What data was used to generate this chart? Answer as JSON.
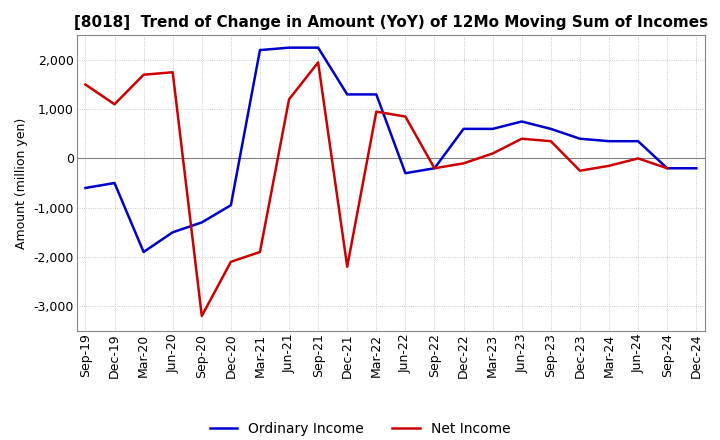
{
  "title": "[8018]  Trend of Change in Amount (YoY) of 12Mo Moving Sum of Incomes",
  "ylabel": "Amount (million yen)",
  "x_labels": [
    "Sep-19",
    "Dec-19",
    "Mar-20",
    "Jun-20",
    "Sep-20",
    "Dec-20",
    "Mar-21",
    "Jun-21",
    "Sep-21",
    "Dec-21",
    "Mar-22",
    "Jun-22",
    "Sep-22",
    "Dec-22",
    "Mar-23",
    "Jun-23",
    "Sep-23",
    "Dec-23",
    "Mar-24",
    "Jun-24",
    "Sep-24",
    "Dec-24"
  ],
  "ordinary_income": [
    -600,
    -500,
    -1900,
    -1500,
    -1300,
    -950,
    2200,
    2250,
    2250,
    1300,
    1300,
    -300,
    -200,
    600,
    600,
    750,
    600,
    400,
    350,
    350,
    -200,
    -200
  ],
  "net_income": [
    1500,
    1100,
    1700,
    1750,
    -3200,
    -2100,
    -1900,
    1200,
    1950,
    -2200,
    950,
    850,
    -200,
    -100,
    100,
    400,
    350,
    -250,
    -150,
    0,
    -200,
    null
  ],
  "ordinary_income_color": "#0000cc",
  "net_income_color": "#cc0000",
  "ylim": [
    -3500,
    2500
  ],
  "yticks": [
    -3000,
    -2000,
    -1000,
    0,
    1000,
    2000
  ],
  "background_color": "#ffffff",
  "grid_color": "#bbbbbb",
  "title_fontsize": 11,
  "axis_fontsize": 9,
  "legend_fontsize": 10
}
